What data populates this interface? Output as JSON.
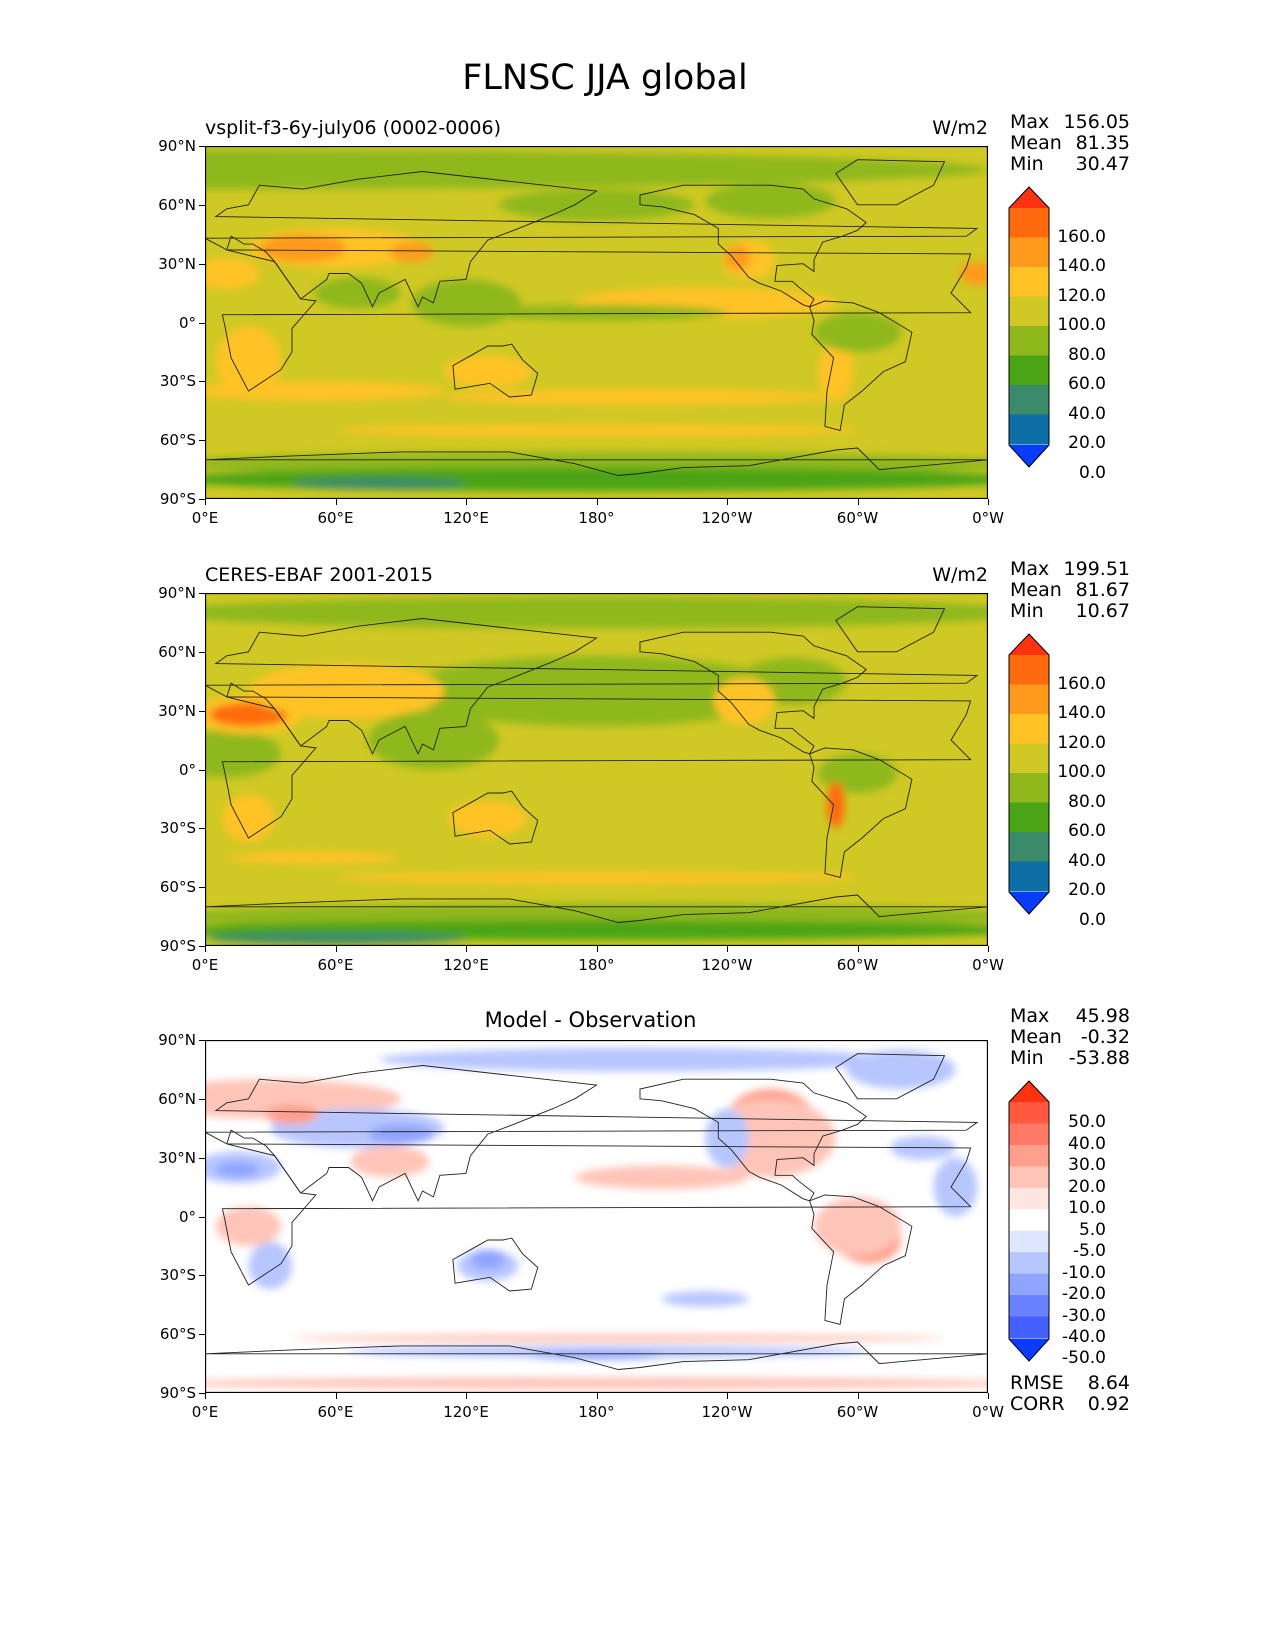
{
  "page": {
    "title": "FLNSC JJA global"
  },
  "panels": [
    {
      "left_title": "vsplit-f3-6y-july06 (0002-0006)",
      "center_title": "",
      "units": "W/m2",
      "stats": [
        {
          "label": "Max",
          "value": "156.05"
        },
        {
          "label": "Mean",
          "value": "81.35"
        },
        {
          "label": "Min",
          "value": "30.47"
        }
      ],
      "colorbar_labels": [
        "160.0",
        "140.0",
        "120.0",
        "100.0",
        "80.0",
        "60.0",
        "40.0",
        "20.0",
        "0.0"
      ],
      "colorbar_colors": [
        "#ff3311",
        "#ff6a0e",
        "#ff9a1c",
        "#ffc325",
        "#d0c824",
        "#8fb81c",
        "#4ba415",
        "#3b8a6a",
        "#0e6ea6",
        "#0a3cff"
      ],
      "map_palette": {
        "ocean": "#d0c824",
        "land": "#8fb81c",
        "warm": "#ffc325",
        "hot": "#ff9a1c",
        "cold": "#4ba415",
        "polar": "#3b8a6a"
      },
      "extra_stats": []
    },
    {
      "left_title": "CERES-EBAF 2001-2015",
      "center_title": "",
      "units": "W/m2",
      "stats": [
        {
          "label": "Max",
          "value": "199.51"
        },
        {
          "label": "Mean",
          "value": "81.67"
        },
        {
          "label": "Min",
          "value": "10.67"
        }
      ],
      "colorbar_labels": [
        "160.0",
        "140.0",
        "120.0",
        "100.0",
        "80.0",
        "60.0",
        "40.0",
        "20.0",
        "0.0"
      ],
      "colorbar_colors": [
        "#ff3311",
        "#ff6a0e",
        "#ff9a1c",
        "#ffc325",
        "#d0c824",
        "#8fb81c",
        "#4ba415",
        "#3b8a6a",
        "#0e6ea6",
        "#0a3cff"
      ],
      "map_palette": {
        "ocean": "#d0c824",
        "land": "#8fb81c",
        "warm": "#ffc325",
        "hot": "#ff6a0e",
        "cold": "#4ba415",
        "polar": "#3b8a6a"
      },
      "extra_stats": []
    },
    {
      "left_title": "",
      "center_title": "Model - Observation",
      "units": "",
      "stats": [
        {
          "label": "Max",
          "value": "45.98"
        },
        {
          "label": "Mean",
          "value": "-0.32"
        },
        {
          "label": "Min",
          "value": "-53.88"
        }
      ],
      "colorbar_labels": [
        "50.0",
        "40.0",
        "30.0",
        "20.0",
        "10.0",
        "5.0",
        "-5.0",
        "-10.0",
        "-20.0",
        "-30.0",
        "-40.0",
        "-50.0"
      ],
      "colorbar_colors": [
        "#ff3311",
        "#ff5a40",
        "#ff7a66",
        "#ff9f8c",
        "#ffc4b8",
        "#ffe6e0",
        "#ffffff",
        "#dfe6ff",
        "#b7c6ff",
        "#8fa4ff",
        "#6a82ff",
        "#4460ff",
        "#0a3cff"
      ],
      "map_palette": {
        "ocean": "#ffffff",
        "land": "#ffffff",
        "warm": "#ffc4b8",
        "hot": "#ff9f8c",
        "cold": "#b7c6ff",
        "polar": "#8fa4ff"
      },
      "extra_stats": [
        {
          "label": "RMSE",
          "value": "8.64"
        },
        {
          "label": "CORR",
          "value": "0.92"
        }
      ]
    }
  ],
  "axes": {
    "x_ticks": [
      "0°E",
      "60°E",
      "120°E",
      "180°",
      "120°W",
      "60°W",
      "0°W"
    ],
    "y_ticks": [
      "90°N",
      "60°N",
      "30°N",
      "0°",
      "30°S",
      "60°S",
      "90°S"
    ]
  },
  "chart_data": [
    {
      "type": "heatmap",
      "title": "vsplit-f3-6y-july06 (0002-0006)",
      "variable": "FLNSC",
      "season": "JJA",
      "units": "W/m2",
      "xlim": [
        0,
        360
      ],
      "ylim": [
        -90,
        90
      ],
      "contour_levels": [
        0,
        20,
        40,
        60,
        80,
        100,
        120,
        140,
        160
      ],
      "max": 156.05,
      "mean": 81.35,
      "min": 30.47
    },
    {
      "type": "heatmap",
      "title": "CERES-EBAF 2001-2015",
      "variable": "FLNSC",
      "season": "JJA",
      "units": "W/m2",
      "xlim": [
        0,
        360
      ],
      "ylim": [
        -90,
        90
      ],
      "contour_levels": [
        0,
        20,
        40,
        60,
        80,
        100,
        120,
        140,
        160
      ],
      "max": 199.51,
      "mean": 81.67,
      "min": 10.67
    },
    {
      "type": "heatmap",
      "title": "Model - Observation",
      "variable": "FLNSC",
      "season": "JJA",
      "xlim": [
        0,
        360
      ],
      "ylim": [
        -90,
        90
      ],
      "contour_levels": [
        -50,
        -40,
        -30,
        -20,
        -10,
        -5,
        5,
        10,
        20,
        30,
        40,
        50
      ],
      "max": 45.98,
      "mean": -0.32,
      "min": -53.88,
      "rmse": 8.64,
      "corr": 0.92
    }
  ]
}
